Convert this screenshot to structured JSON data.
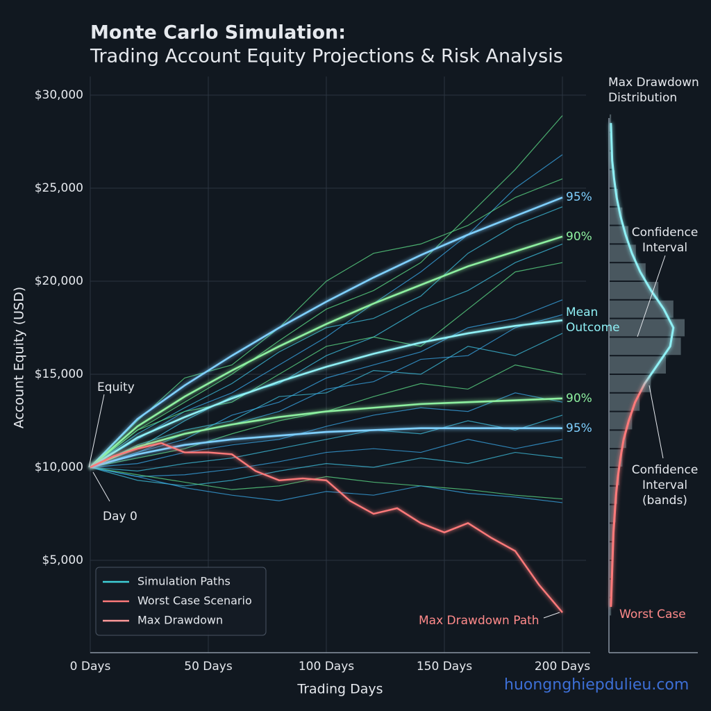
{
  "chart_data": {
    "type": "line",
    "title": "Monte Carlo Simulation:",
    "subtitle": "Trading Account Equity Projections & Risk Analysis",
    "x_label": "Trading Days",
    "y_label": "Account Equity (USD)",
    "xlim": [
      0,
      210
    ],
    "ylim": [
      0,
      31000
    ],
    "xticks": [
      {
        "value": 0,
        "label": "0 Days"
      },
      {
        "value": 50,
        "label": "50 Days"
      },
      {
        "value": 100,
        "label": "100 Days"
      },
      {
        "value": 150,
        "label": "150 Days"
      },
      {
        "value": 200,
        "label": "200 Days"
      }
    ],
    "yticks": [
      {
        "value": 5000,
        "label": "$5,000"
      },
      {
        "value": 10000,
        "label": "$10,000"
      },
      {
        "value": 15000,
        "label": "$15,000"
      },
      {
        "value": 20000,
        "label": "$20,000"
      },
      {
        "value": 25000,
        "label": "$25,000"
      },
      {
        "value": 30000,
        "label": "$30,000"
      }
    ],
    "grid": true,
    "x": [
      0,
      20,
      40,
      60,
      80,
      100,
      120,
      140,
      160,
      180,
      200
    ],
    "simulation": {
      "paths": [
        {
          "color": "#5fe08a",
          "values": [
            10000,
            12000,
            13500,
            15000,
            16800,
            18500,
            19500,
            21000,
            23500,
            26000,
            28900
          ]
        },
        {
          "color": "#3aa8e8",
          "values": [
            10000,
            11500,
            13000,
            14000,
            15500,
            17000,
            18800,
            20500,
            22500,
            25000,
            26800
          ]
        },
        {
          "color": "#5fe08a",
          "values": [
            10000,
            12500,
            14800,
            15500,
            17500,
            20000,
            21500,
            22000,
            23000,
            24500,
            25500
          ]
        },
        {
          "color": "#3fc2e0",
          "values": [
            10000,
            11000,
            12500,
            13800,
            14500,
            16000,
            17000,
            18500,
            19500,
            21000,
            22000
          ]
        },
        {
          "color": "#3aa8e8",
          "values": [
            10000,
            10800,
            11500,
            12800,
            13500,
            14800,
            15500,
            16200,
            17500,
            18000,
            19000
          ]
        },
        {
          "color": "#3fc2e0",
          "values": [
            10000,
            11200,
            12000,
            12500,
            13800,
            14000,
            15200,
            15000,
            16500,
            16000,
            17200
          ]
        },
        {
          "color": "#5fe08a",
          "values": [
            10000,
            10500,
            11000,
            11800,
            12500,
            13000,
            13800,
            14500,
            14200,
            15500,
            15000
          ]
        },
        {
          "color": "#3aa8e8",
          "values": [
            10000,
            10200,
            10800,
            11200,
            11500,
            12200,
            12800,
            13200,
            13000,
            14000,
            13500
          ]
        },
        {
          "color": "#3fc2e0",
          "values": [
            10000,
            9800,
            10200,
            10500,
            11000,
            11500,
            12000,
            11800,
            12500,
            12000,
            12800
          ]
        },
        {
          "color": "#3aa8e8",
          "values": [
            10000,
            9500,
            9600,
            9900,
            10300,
            10800,
            11000,
            10800,
            11500,
            11000,
            11500
          ]
        },
        {
          "color": "#3fc2e0",
          "values": [
            10000,
            9300,
            9000,
            9300,
            9800,
            10200,
            10000,
            10500,
            10200,
            10800,
            10500
          ]
        },
        {
          "color": "#5fe08a",
          "values": [
            10000,
            9600,
            9200,
            8800,
            9000,
            9500,
            9200,
            9000,
            8800,
            8500,
            8300
          ]
        },
        {
          "color": "#3aa8e8",
          "values": [
            10000,
            9500,
            8900,
            8500,
            8200,
            8700,
            8500,
            9000,
            8600,
            8400,
            8100
          ]
        },
        {
          "color": "#3fc2e0",
          "values": [
            10000,
            11800,
            13200,
            14500,
            16200,
            17500,
            18000,
            19200,
            21500,
            23000,
            24000
          ]
        },
        {
          "color": "#5fe08a",
          "values": [
            10000,
            12000,
            13000,
            13500,
            15000,
            16500,
            17000,
            16500,
            18500,
            20500,
            21000
          ]
        },
        {
          "color": "#3aa8e8",
          "values": [
            10000,
            10800,
            11800,
            12300,
            13000,
            14200,
            14600,
            15800,
            16000,
            17500,
            18200
          ]
        }
      ]
    },
    "percentiles": [
      {
        "label": "95%",
        "color": "#7fd0ff",
        "values": [
          10000,
          12600,
          14400,
          16000,
          17500,
          18900,
          20200,
          21400,
          22500,
          23500,
          24500
        ]
      },
      {
        "label": "90%",
        "color": "#8ef0a0",
        "values": [
          10000,
          12200,
          13800,
          15200,
          16500,
          17700,
          18800,
          19800,
          20800,
          21600,
          22400
        ]
      },
      {
        "label": "Mean Outcome",
        "color": "#8ff0f5",
        "values": [
          10000,
          11600,
          12700,
          13700,
          14600,
          15400,
          16100,
          16700,
          17200,
          17600,
          17900
        ]
      },
      {
        "label": "90%",
        "color": "#8ef0a0",
        "values": [
          10000,
          11100,
          11800,
          12300,
          12700,
          13000,
          13200,
          13400,
          13500,
          13600,
          13700
        ]
      },
      {
        "label": "95%",
        "color": "#7fd0ff",
        "values": [
          10000,
          10700,
          11200,
          11500,
          11700,
          11900,
          12000,
          12100,
          12100,
          12100,
          12100
        ]
      }
    ],
    "worst_case": {
      "color": "#ff7a7a",
      "x": [
        0,
        10,
        20,
        30,
        40,
        50,
        60,
        70,
        80,
        90,
        100,
        110,
        120,
        130,
        140,
        150,
        160,
        170,
        180,
        190,
        200
      ],
      "values": [
        10000,
        10600,
        11000,
        11300,
        10800,
        10800,
        10700,
        9800,
        9300,
        9400,
        9300,
        8200,
        7500,
        7800,
        7000,
        6500,
        7000,
        6200,
        5500,
        3700,
        2200
      ]
    },
    "legend": [
      {
        "name": "Simulation Paths",
        "color": "#3fd0d8"
      },
      {
        "name": "Worst Case Scenario",
        "color": "#ff7a7a"
      },
      {
        "name": "Max Drawdown",
        "color": "#ff9a9a"
      }
    ],
    "legend_position": "lower left",
    "annotations": {
      "equity": "Equity",
      "day0": "Day 0",
      "max_drawdown_path": "Max Drawdown Path"
    },
    "distribution": {
      "title": "Max Drawdown Distribution",
      "bins": [
        2000,
        3000,
        4000,
        5000,
        6000,
        7000,
        8000,
        9000,
        10000,
        11000,
        12000,
        13000,
        14000,
        15000,
        16000,
        17000,
        18000,
        19000,
        20000,
        21000,
        22000,
        23000,
        24000,
        25000,
        26000,
        27000,
        28000,
        29000
      ],
      "counts": [
        2,
        3,
        4,
        5,
        6,
        8,
        10,
        13,
        17,
        22,
        30,
        40,
        55,
        75,
        95,
        100,
        85,
        65,
        48,
        35,
        25,
        17,
        11,
        7,
        4,
        3,
        2
      ],
      "annotations": {
        "upper": "Confidence Interval",
        "lower": "Confidence Interval (bands)",
        "worst": "Worst Case"
      }
    },
    "watermark": "huongnghiepdulieu.com"
  }
}
